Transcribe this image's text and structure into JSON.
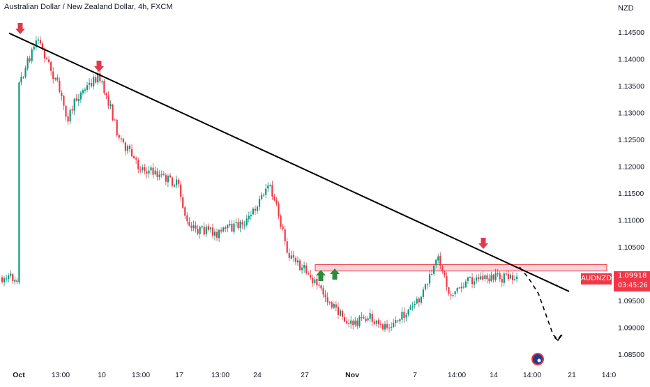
{
  "chart_title": "Australian Dollar / New Zealand Dollar, 4h, FXCM",
  "currency": "NZD",
  "symbol": "AUDNZD",
  "last_price": "1.09918",
  "countdown": "03:45:26",
  "colors": {
    "up": "#089981",
    "down": "#f23645",
    "trendline": "#000000",
    "zone_fill": "#f7c6cb",
    "zone_border": "#f23645",
    "arrow_down": "#e03a4a",
    "arrow_up": "#2e8b3a"
  },
  "chart_data": {
    "type": "candlestick",
    "y_ticks": [
      "1.14500",
      "1.14000",
      "1.13500",
      "1.13000",
      "1.12500",
      "1.12000",
      "1.11500",
      "1.11000",
      "1.10500",
      "1.10000",
      "1.09500",
      "1.09000",
      "1.08500"
    ],
    "x_ticks": [
      "Oct",
      "13:00",
      "10",
      "13:00",
      "17",
      "13:00",
      "24",
      "27",
      "Nov",
      "7",
      "14:00",
      "14",
      "14:00",
      "21",
      "14:0"
    ],
    "ylim": [
      1.0835,
      1.1475
    ],
    "path_points": [
      {
        "x": "Oct",
        "y": 1.1345
      },
      {
        "x": "Oct 03",
        "y": 1.144
      },
      {
        "x": "Oct 05",
        "y": 1.135
      },
      {
        "x": "Oct 06",
        "y": 1.129
      },
      {
        "x": "Oct 07",
        "y": 1.133
      },
      {
        "x": "Oct 09",
        "y": 1.1368
      },
      {
        "x": "Oct 10",
        "y": 1.1325
      },
      {
        "x": "Oct 11",
        "y": 1.126
      },
      {
        "x": "Oct 13",
        "y": 1.12
      },
      {
        "x": "Oct 15",
        "y": 1.1185
      },
      {
        "x": "Oct 17",
        "y": 1.1165
      },
      {
        "x": "Oct 18",
        "y": 1.1085
      },
      {
        "x": "Oct 21",
        "y": 1.1075
      },
      {
        "x": "Oct 24",
        "y": 1.11
      },
      {
        "x": "Oct 26",
        "y": 1.1168
      },
      {
        "x": "Oct 27",
        "y": 1.111
      },
      {
        "x": "Oct 28",
        "y": 1.1035
      },
      {
        "x": "Oct 30",
        "y": 1.1
      },
      {
        "x": "Nov",
        "y": 1.095
      },
      {
        "x": "Nov 03",
        "y": 1.0905
      },
      {
        "x": "Nov 05",
        "y": 1.092
      },
      {
        "x": "Nov 06",
        "y": 1.09
      },
      {
        "x": "Nov 08",
        "y": 1.0915
      },
      {
        "x": "Nov 10",
        "y": 1.095
      },
      {
        "x": "Nov 12",
        "y": 1.103
      },
      {
        "x": "Nov 13",
        "y": 1.096
      },
      {
        "x": "Nov 15",
        "y": 1.0988
      },
      {
        "x": "Nov 16",
        "y": 1.0992
      }
    ],
    "trendline": {
      "from": {
        "x": "Oct",
        "y": 1.1448
      },
      "to": {
        "x": "Nov 22",
        "y": 1.0967
      }
    },
    "resistance_zone": {
      "y_from": 1.1005,
      "y_to": 1.1017,
      "x_from": "Oct 27",
      "x_to": "Nov 22"
    },
    "projection": [
      {
        "x": "Nov 18",
        "y": 1.101
      },
      {
        "x": "Nov 19",
        "y": 1.0985
      },
      {
        "x": "Nov 20",
        "y": 1.093
      },
      {
        "x": "Nov 21",
        "y": 1.0878
      }
    ],
    "markers_down": [
      "Oct 03",
      "Oct 09",
      "Nov 12"
    ],
    "markers_up": [
      "Oct 28",
      "Oct 29"
    ]
  }
}
